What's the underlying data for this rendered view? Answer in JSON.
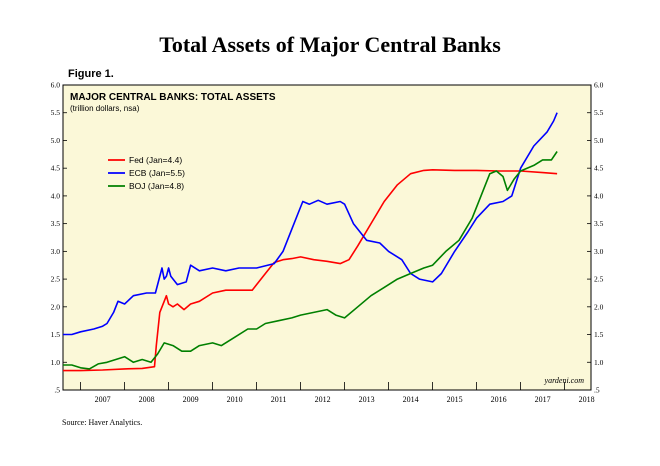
{
  "page": {
    "title": "Total Assets of Major Central Banks",
    "figure_label": "Figure 1.",
    "source": "Source: Haver Analytics."
  },
  "chart_data": {
    "type": "line",
    "title": "MAJOR CENTRAL BANKS: TOTAL ASSETS",
    "subtitle": "(trillion dollars, nsa)",
    "credit": "yardeni.com",
    "xlabel": "",
    "ylabel": "",
    "xlim": [
      2006.6,
      2018.6
    ],
    "ylim": [
      0.5,
      6.0
    ],
    "y_ticks": [
      ".5",
      "1.0",
      "1.5",
      "2.0",
      "2.5",
      "3.0",
      "3.5",
      "4.0",
      "4.5",
      "5.0",
      "5.5",
      "6.0"
    ],
    "x_tick_labels": [
      "2007",
      "2008",
      "2009",
      "2010",
      "2011",
      "2012",
      "2013",
      "2014",
      "2015",
      "2016",
      "2017",
      "2018"
    ],
    "grid": false,
    "legend_position": "top-left",
    "background": "#fbf8d8",
    "series": [
      {
        "name": "Fed (Jan=4.4)",
        "color": "#ff0000",
        "points": [
          [
            2006.6,
            0.85
          ],
          [
            2007.0,
            0.85
          ],
          [
            2007.5,
            0.86
          ],
          [
            2008.0,
            0.88
          ],
          [
            2008.4,
            0.89
          ],
          [
            2008.68,
            0.92
          ],
          [
            2008.72,
            1.3
          ],
          [
            2008.8,
            1.9
          ],
          [
            2008.9,
            2.1
          ],
          [
            2008.95,
            2.2
          ],
          [
            2009.0,
            2.05
          ],
          [
            2009.1,
            2.0
          ],
          [
            2009.2,
            2.05
          ],
          [
            2009.35,
            1.95
          ],
          [
            2009.5,
            2.05
          ],
          [
            2009.7,
            2.1
          ],
          [
            2010.0,
            2.25
          ],
          [
            2010.3,
            2.3
          ],
          [
            2010.6,
            2.3
          ],
          [
            2010.9,
            2.3
          ],
          [
            2011.0,
            2.4
          ],
          [
            2011.2,
            2.6
          ],
          [
            2011.4,
            2.8
          ],
          [
            2011.6,
            2.85
          ],
          [
            2011.8,
            2.87
          ],
          [
            2012.0,
            2.9
          ],
          [
            2012.3,
            2.85
          ],
          [
            2012.6,
            2.82
          ],
          [
            2012.9,
            2.78
          ],
          [
            2013.1,
            2.85
          ],
          [
            2013.3,
            3.1
          ],
          [
            2013.6,
            3.5
          ],
          [
            2013.9,
            3.9
          ],
          [
            2014.2,
            4.2
          ],
          [
            2014.5,
            4.4
          ],
          [
            2014.8,
            4.46
          ],
          [
            2015.0,
            4.47
          ],
          [
            2015.5,
            4.46
          ],
          [
            2016.0,
            4.46
          ],
          [
            2016.5,
            4.45
          ],
          [
            2017.0,
            4.45
          ],
          [
            2017.5,
            4.42
          ],
          [
            2017.83,
            4.4
          ]
        ]
      },
      {
        "name": "ECB (Jan=5.5)",
        "color": "#0000ff",
        "points": [
          [
            2006.6,
            1.5
          ],
          [
            2006.8,
            1.5
          ],
          [
            2007.0,
            1.55
          ],
          [
            2007.3,
            1.6
          ],
          [
            2007.5,
            1.65
          ],
          [
            2007.6,
            1.7
          ],
          [
            2007.75,
            1.9
          ],
          [
            2007.85,
            2.1
          ],
          [
            2008.0,
            2.05
          ],
          [
            2008.2,
            2.2
          ],
          [
            2008.5,
            2.25
          ],
          [
            2008.7,
            2.25
          ],
          [
            2008.85,
            2.7
          ],
          [
            2008.9,
            2.5
          ],
          [
            2008.95,
            2.55
          ],
          [
            2009.0,
            2.7
          ],
          [
            2009.05,
            2.55
          ],
          [
            2009.2,
            2.4
          ],
          [
            2009.4,
            2.45
          ],
          [
            2009.5,
            2.75
          ],
          [
            2009.7,
            2.65
          ],
          [
            2010.0,
            2.7
          ],
          [
            2010.3,
            2.65
          ],
          [
            2010.6,
            2.7
          ],
          [
            2011.0,
            2.7
          ],
          [
            2011.4,
            2.78
          ],
          [
            2011.6,
            3.0
          ],
          [
            2011.8,
            3.4
          ],
          [
            2011.95,
            3.7
          ],
          [
            2012.05,
            3.9
          ],
          [
            2012.2,
            3.85
          ],
          [
            2012.4,
            3.92
          ],
          [
            2012.6,
            3.85
          ],
          [
            2012.9,
            3.9
          ],
          [
            2013.0,
            3.85
          ],
          [
            2013.2,
            3.5
          ],
          [
            2013.5,
            3.2
          ],
          [
            2013.8,
            3.15
          ],
          [
            2014.0,
            3.0
          ],
          [
            2014.3,
            2.85
          ],
          [
            2014.5,
            2.6
          ],
          [
            2014.7,
            2.5
          ],
          [
            2015.0,
            2.45
          ],
          [
            2015.2,
            2.6
          ],
          [
            2015.5,
            3.0
          ],
          [
            2015.8,
            3.35
          ],
          [
            2016.0,
            3.6
          ],
          [
            2016.3,
            3.85
          ],
          [
            2016.6,
            3.9
          ],
          [
            2016.8,
            4.0
          ],
          [
            2017.0,
            4.5
          ],
          [
            2017.3,
            4.9
          ],
          [
            2017.6,
            5.15
          ],
          [
            2017.75,
            5.35
          ],
          [
            2017.83,
            5.5
          ]
        ]
      },
      {
        "name": "BOJ (Jan=4.8)",
        "color": "#008000",
        "points": [
          [
            2006.6,
            0.95
          ],
          [
            2006.8,
            0.95
          ],
          [
            2007.0,
            0.9
          ],
          [
            2007.2,
            0.88
          ],
          [
            2007.4,
            0.97
          ],
          [
            2007.6,
            1.0
          ],
          [
            2007.8,
            1.05
          ],
          [
            2008.0,
            1.1
          ],
          [
            2008.2,
            1.0
          ],
          [
            2008.4,
            1.05
          ],
          [
            2008.6,
            1.0
          ],
          [
            2008.75,
            1.15
          ],
          [
            2008.9,
            1.35
          ],
          [
            2009.1,
            1.3
          ],
          [
            2009.3,
            1.2
          ],
          [
            2009.5,
            1.2
          ],
          [
            2009.7,
            1.3
          ],
          [
            2010.0,
            1.35
          ],
          [
            2010.2,
            1.3
          ],
          [
            2010.5,
            1.45
          ],
          [
            2010.8,
            1.6
          ],
          [
            2011.0,
            1.6
          ],
          [
            2011.2,
            1.7
          ],
          [
            2011.5,
            1.75
          ],
          [
            2011.8,
            1.8
          ],
          [
            2012.0,
            1.85
          ],
          [
            2012.3,
            1.9
          ],
          [
            2012.6,
            1.95
          ],
          [
            2012.8,
            1.85
          ],
          [
            2013.0,
            1.8
          ],
          [
            2013.3,
            2.0
          ],
          [
            2013.6,
            2.2
          ],
          [
            2013.9,
            2.35
          ],
          [
            2014.2,
            2.5
          ],
          [
            2014.5,
            2.6
          ],
          [
            2014.8,
            2.7
          ],
          [
            2015.0,
            2.75
          ],
          [
            2015.3,
            3.0
          ],
          [
            2015.6,
            3.2
          ],
          [
            2015.9,
            3.6
          ],
          [
            2016.1,
            4.0
          ],
          [
            2016.3,
            4.4
          ],
          [
            2016.45,
            4.45
          ],
          [
            2016.6,
            4.35
          ],
          [
            2016.7,
            4.1
          ],
          [
            2016.85,
            4.3
          ],
          [
            2017.0,
            4.45
          ],
          [
            2017.3,
            4.55
          ],
          [
            2017.5,
            4.65
          ],
          [
            2017.7,
            4.65
          ],
          [
            2017.83,
            4.8
          ]
        ]
      }
    ]
  }
}
